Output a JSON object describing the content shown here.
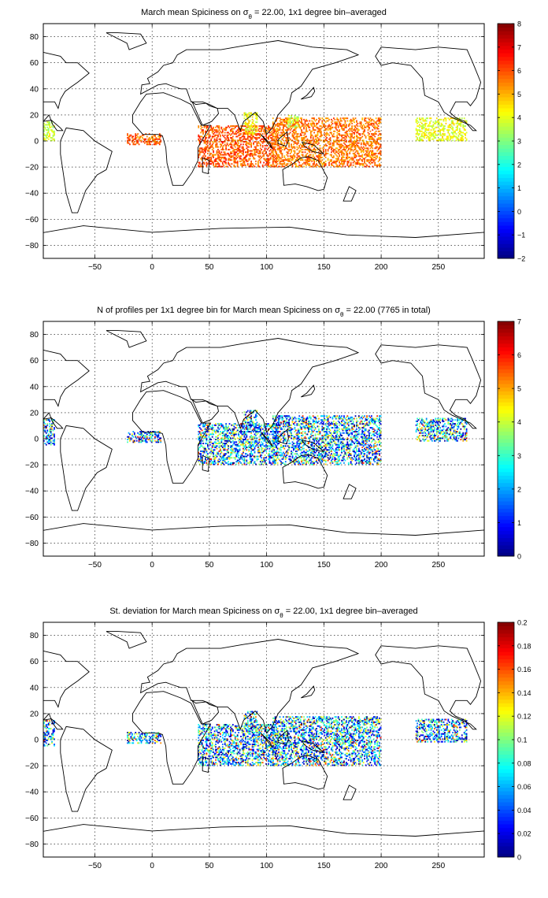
{
  "panels": [
    {
      "title": {
        "prefix": "March mean Spiciness on σ",
        "subscript": "θ",
        "suffix": " = 22.00, 1x1 degree bin–averaged"
      },
      "colorbar": {
        "min": -2,
        "max": 8,
        "ticks": [
          "8",
          "7",
          "6",
          "5",
          "4",
          "3",
          "2",
          "1",
          "0",
          "−1",
          "−2"
        ]
      },
      "clusters": [
        {
          "lon": [
            -95,
            -85
          ],
          "lat": [
            0,
            15
          ],
          "value": 3.8
        },
        {
          "lon": [
            -22,
            8
          ],
          "lat": [
            -3,
            6
          ],
          "value": 5.8
        },
        {
          "lon": [
            40,
            110
          ],
          "lat": [
            -20,
            12
          ],
          "value": 5.9
        },
        {
          "lon": [
            80,
            92
          ],
          "lat": [
            5,
            22
          ],
          "value": 4.2
        },
        {
          "lon": [
            105,
            200
          ],
          "lat": [
            -20,
            18
          ],
          "value": 5.6
        },
        {
          "lon": [
            118,
            128
          ],
          "lat": [
            10,
            20
          ],
          "value": 3.5
        },
        {
          "lon": [
            230,
            275
          ],
          "lat": [
            0,
            18
          ],
          "value": 4.1
        }
      ]
    },
    {
      "title": {
        "prefix": "N of profiles per 1x1 degree bin for March mean Spiciness on σ",
        "subscript": "θ",
        "suffix": " = 22.00 (7765 in total)"
      },
      "colorbar": {
        "min": 0,
        "max": 7,
        "ticks": [
          "7",
          "6",
          "5",
          "4",
          "3",
          "2",
          "1",
          "0"
        ]
      },
      "clusters": [
        {
          "lon": [
            -95,
            -85
          ],
          "lat": [
            -5,
            15
          ],
          "value": 2.0
        },
        {
          "lon": [
            -22,
            8
          ],
          "lat": [
            -3,
            6
          ],
          "value": 2.2
        },
        {
          "lon": [
            40,
            110
          ],
          "lat": [
            -20,
            12
          ],
          "value": 2.3
        },
        {
          "lon": [
            80,
            92
          ],
          "lat": [
            5,
            22
          ],
          "value": 3.0
        },
        {
          "lon": [
            105,
            200
          ],
          "lat": [
            -20,
            18
          ],
          "value": 2.0
        },
        {
          "lon": [
            230,
            275
          ],
          "lat": [
            -2,
            16
          ],
          "value": 2.1
        }
      ]
    },
    {
      "title": {
        "prefix": "St. deviation for March mean Spiciness on σ",
        "subscript": "θ",
        "suffix": " = 22.00, 1x1 degree bin–averaged"
      },
      "colorbar": {
        "min": 0,
        "max": 0.2,
        "ticks": [
          "0.2",
          "0.18",
          "0.16",
          "0.14",
          "0.12",
          "0.1",
          "0.08",
          "0.06",
          "0.04",
          "0.02",
          "0"
        ]
      },
      "clusters": [
        {
          "lon": [
            -95,
            -85
          ],
          "lat": [
            -5,
            15
          ],
          "value": 0.09
        },
        {
          "lon": [
            -22,
            8
          ],
          "lat": [
            -3,
            6
          ],
          "value": 0.08
        },
        {
          "lon": [
            40,
            110
          ],
          "lat": [
            -20,
            12
          ],
          "value": 0.1
        },
        {
          "lon": [
            80,
            92
          ],
          "lat": [
            5,
            22
          ],
          "value": 0.11
        },
        {
          "lon": [
            105,
            200
          ],
          "lat": [
            -20,
            18
          ],
          "value": 0.09
        },
        {
          "lon": [
            230,
            275
          ],
          "lat": [
            -2,
            16
          ],
          "value": 0.08
        }
      ]
    }
  ],
  "axes": {
    "xlim": [
      -95,
      290
    ],
    "ylim": [
      -90,
      90
    ],
    "xticks": [
      -50,
      0,
      50,
      100,
      150,
      200,
      250
    ],
    "yticks": [
      80,
      60,
      40,
      20,
      0,
      -20,
      -40,
      -60,
      -80
    ],
    "xtick_labels": [
      "−50",
      "0",
      "50",
      "100",
      "150",
      "200",
      "250"
    ],
    "ytick_labels": [
      "80",
      "60",
      "40",
      "20",
      "0",
      "−20",
      "−40",
      "−60",
      "−80"
    ],
    "grid": true
  },
  "colors": {
    "coastline": "#000000",
    "grid": "#000000",
    "frame": "#000000"
  }
}
